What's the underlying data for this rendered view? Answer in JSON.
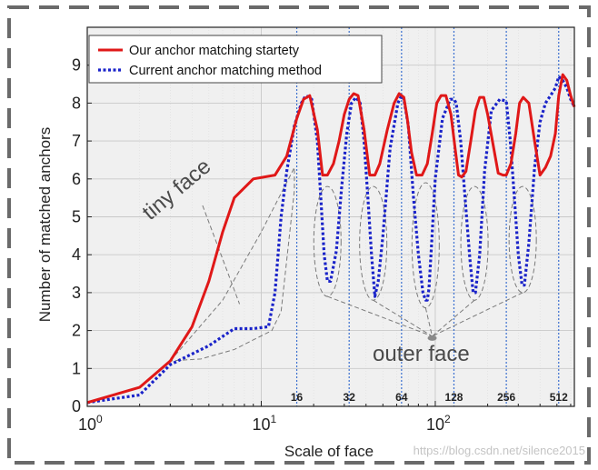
{
  "chart_data": {
    "type": "line",
    "title": "",
    "xlabel": "Scale of face",
    "ylabel": "Number of matched anchors",
    "xscale": "log",
    "xlim": [
      1,
      630
    ],
    "ylim": [
      0,
      10
    ],
    "yticks": [
      0,
      1,
      2,
      3,
      4,
      5,
      6,
      7,
      8,
      9
    ],
    "xticks": [
      {
        "value": 1,
        "base": "10",
        "exp": "0"
      },
      {
        "value": 10,
        "base": "10",
        "exp": "1"
      },
      {
        "value": 100,
        "base": "10",
        "exp": "2"
      }
    ],
    "grid": true,
    "legend_position": "top-left",
    "series": [
      {
        "name": "Our anchor matching startety",
        "color": "#e01818",
        "style": "solid",
        "x": [
          1,
          2,
          3,
          4,
          5,
          6,
          7,
          9,
          12,
          14,
          16,
          17.5,
          19,
          21,
          22.5,
          24,
          26,
          28,
          30,
          32,
          34,
          36,
          39,
          42,
          45,
          48,
          53,
          58,
          62,
          66,
          69,
          73,
          78,
          84,
          90,
          96,
          102,
          108,
          115,
          123,
          130,
          136,
          142,
          150,
          160,
          170,
          180,
          190,
          200,
          215,
          230,
          245,
          256,
          272,
          290,
          305,
          320,
          345,
          372,
          400,
          430,
          460,
          490,
          512,
          540,
          570,
          600,
          630
        ],
        "y": [
          0.1,
          0.5,
          1.2,
          2.1,
          3.3,
          4.6,
          5.5,
          6.0,
          6.1,
          6.6,
          7.6,
          8.1,
          8.2,
          7.3,
          6.1,
          6.1,
          6.4,
          7.0,
          7.7,
          8.1,
          8.25,
          8.2,
          7.3,
          6.1,
          6.1,
          6.4,
          7.3,
          8.0,
          8.25,
          8.15,
          7.6,
          6.7,
          6.1,
          6.1,
          6.4,
          7.2,
          8.0,
          8.2,
          8.2,
          7.7,
          6.8,
          6.1,
          6.05,
          6.2,
          7.0,
          7.8,
          8.15,
          8.15,
          7.7,
          6.9,
          6.15,
          6.1,
          6.1,
          6.4,
          7.2,
          8.0,
          8.15,
          8.0,
          7.0,
          6.1,
          6.3,
          6.6,
          7.2,
          8.2,
          8.75,
          8.6,
          8.2,
          7.9
        ]
      },
      {
        "name": "Current anchor matching method",
        "color": "#1a23c9",
        "style": "dotted",
        "x": [
          1,
          2,
          3,
          5,
          7,
          9,
          11,
          12,
          13,
          14,
          15.5,
          17,
          18,
          19.5,
          21,
          22,
          23,
          24,
          25,
          27,
          29,
          31,
          33,
          35,
          37,
          39,
          41,
          43,
          45,
          47,
          50,
          55,
          61,
          64,
          66,
          70,
          75,
          80,
          85,
          88,
          90,
          92,
          95,
          100,
          110,
          122,
          128,
          132,
          140,
          150,
          158,
          165,
          170,
          180,
          192,
          210,
          235,
          256,
          270,
          285,
          300,
          315,
          325,
          345,
          372,
          400,
          430,
          460,
          490,
          512,
          540,
          570,
          600,
          630
        ],
        "y": [
          0.1,
          0.3,
          1.1,
          1.6,
          2.05,
          2.05,
          2.1,
          3.0,
          5.0,
          6.2,
          7.4,
          8.0,
          8.2,
          8.1,
          7.0,
          5.5,
          4.0,
          3.3,
          3.3,
          4.1,
          5.8,
          7.2,
          8.0,
          8.15,
          8.0,
          7.0,
          5.5,
          4.0,
          2.9,
          3.3,
          4.5,
          6.8,
          8.0,
          8.2,
          8.1,
          7.4,
          5.5,
          4.0,
          3.0,
          2.8,
          2.8,
          3.1,
          4.2,
          6.0,
          7.6,
          8.1,
          8.1,
          8.0,
          7.0,
          5.2,
          3.9,
          3.0,
          3.0,
          4.0,
          6.2,
          7.8,
          8.1,
          8.05,
          7.0,
          5.5,
          4.0,
          3.2,
          3.2,
          4.3,
          6.3,
          7.5,
          8.0,
          8.2,
          8.4,
          8.7,
          8.6,
          8.4,
          8.1,
          7.9
        ]
      }
    ],
    "scale_lines": [
      {
        "value": 16,
        "label": "16"
      },
      {
        "value": 32,
        "label": "32"
      },
      {
        "value": 64,
        "label": "64"
      },
      {
        "value": 128,
        "label": "128"
      },
      {
        "value": 256,
        "label": "256"
      },
      {
        "value": 512,
        "label": "512"
      }
    ],
    "annotations": {
      "tiny_face": "tiny face",
      "outer_face": "outer face"
    }
  },
  "watermark": "https://blog.csdn.net/silence2015"
}
